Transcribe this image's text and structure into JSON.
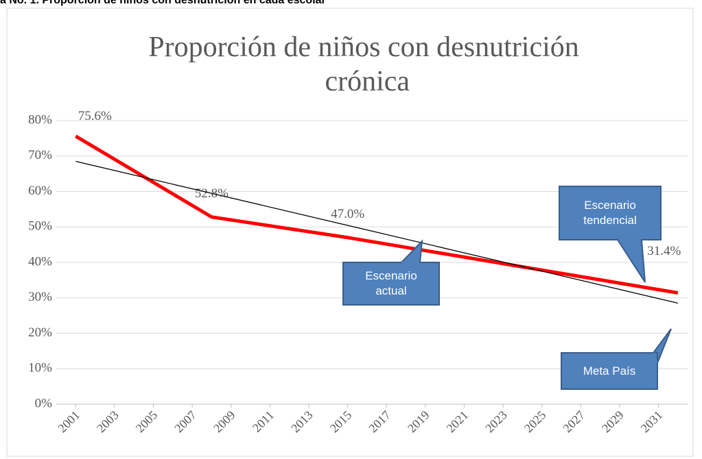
{
  "caption": "a No. 1. Proporción de niños con desnutrición en cada escolar",
  "chart_data": {
    "type": "line",
    "title": "Proporción de niños con desnutrición crónica",
    "xlim": [
      2000,
      2032.5
    ],
    "xticks": [
      2001,
      2003,
      2005,
      2007,
      2009,
      2011,
      2013,
      2015,
      2017,
      2019,
      2021,
      2023,
      2025,
      2027,
      2029,
      2031
    ],
    "ylim": [
      0,
      80
    ],
    "yticks": [
      {
        "value": 0,
        "label": "0%"
      },
      {
        "value": 10,
        "label": "10%"
      },
      {
        "value": 20,
        "label": "20%"
      },
      {
        "value": 30,
        "label": "30%"
      },
      {
        "value": 40,
        "label": "40%"
      },
      {
        "value": 50,
        "label": "50%"
      },
      {
        "value": 60,
        "label": "60%"
      },
      {
        "value": 70,
        "label": "70%"
      },
      {
        "value": 80,
        "label": "80%"
      }
    ],
    "grid": true,
    "series": [
      {
        "color": "#ff0000",
        "x": [
          2001,
          2008,
          2015,
          2032
        ],
        "values": [
          75.6,
          52.8,
          47.0,
          31.4
        ],
        "value_labels": [
          "75.6%",
          "52.8%",
          "47.0%",
          "31.4%"
        ]
      },
      {
        "color": "#000000",
        "x": [
          2001,
          2032
        ],
        "values": [
          68.5,
          28.5
        ]
      }
    ],
    "annotations": [
      "Escenario tendencial",
      "Escenario actual",
      "Meta País"
    ]
  }
}
